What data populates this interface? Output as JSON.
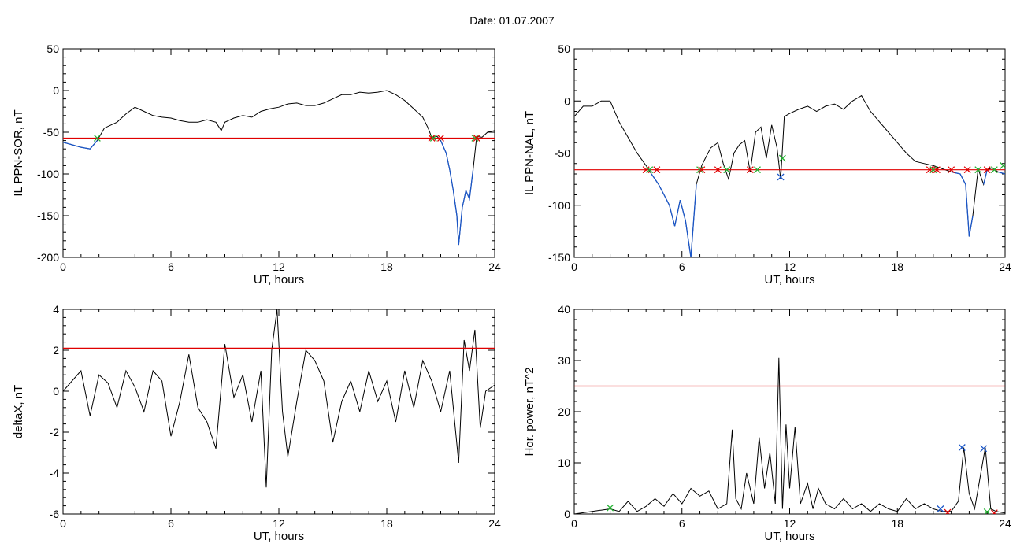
{
  "page": {
    "title": "Date:  01.07.2007"
  },
  "colors": {
    "trace": "#000000",
    "threshold": "#e00000",
    "below": "#1a56c8",
    "marker_red": "#e00000",
    "marker_green": "#22b030",
    "marker_blue": "#1a56c8"
  },
  "chart_data": [
    {
      "type": "line",
      "title": "",
      "xlabel": "UT, hours",
      "ylabel": "IL PPN-SOR, nT",
      "xlim": [
        0,
        24
      ],
      "ylim": [
        -200,
        50
      ],
      "xticks": [
        "0",
        "6",
        "12",
        "18",
        "24"
      ],
      "yticks": [
        "50",
        "0",
        "-50",
        "-100",
        "-150",
        "-200"
      ],
      "grid": false,
      "threshold": -57,
      "series": [
        {
          "x": [
            0,
            0.5,
            1.0,
            1.5,
            1.9,
            2.3,
            3.0,
            3.5,
            4.0,
            4.5,
            5.0,
            5.5,
            6.0,
            6.5,
            7.0,
            7.5,
            8.0,
            8.5,
            8.8,
            9.0,
            9.5,
            10.0,
            10.5,
            11.0,
            11.5,
            12.0,
            12.5,
            13.0,
            13.5,
            14.0,
            14.5,
            15.0,
            15.5,
            16.0,
            16.5,
            17.0,
            17.5,
            18.0,
            18.5,
            19.0,
            19.5,
            20.0,
            20.3,
            20.5,
            20.8,
            21.0,
            21.3,
            21.5,
            21.7,
            21.9,
            22.0,
            22.2,
            22.4,
            22.6,
            22.8,
            23.0,
            23.3,
            23.6,
            24.0
          ],
          "y": [
            -62,
            -65,
            -68,
            -70,
            -60,
            -45,
            -38,
            -28,
            -20,
            -25,
            -30,
            -32,
            -33,
            -36,
            -38,
            -38,
            -35,
            -38,
            -48,
            -38,
            -33,
            -30,
            -32,
            -25,
            -22,
            -20,
            -16,
            -15,
            -18,
            -18,
            -15,
            -10,
            -5,
            -5,
            -2,
            -3,
            -2,
            0,
            -5,
            -12,
            -22,
            -32,
            -45,
            -56,
            -55,
            -60,
            -75,
            -95,
            -120,
            -150,
            -185,
            -140,
            -120,
            -130,
            -95,
            -55,
            -56,
            -50,
            -48
          ]
        }
      ],
      "markers": [
        {
          "x": 1.9,
          "y": -57,
          "color": "green"
        },
        {
          "x": 20.5,
          "y": -57,
          "color": "red"
        },
        {
          "x": 20.6,
          "y": -57,
          "color": "green"
        },
        {
          "x": 21.0,
          "y": -57,
          "color": "red"
        },
        {
          "x": 22.9,
          "y": -57,
          "color": "green"
        },
        {
          "x": 23.0,
          "y": -57,
          "color": "red"
        }
      ]
    },
    {
      "type": "line",
      "title": "",
      "xlabel": "UT, hours",
      "ylabel": "IL PPN-NAL, nT",
      "xlim": [
        0,
        24
      ],
      "ylim": [
        -150,
        50
      ],
      "xticks": [
        "0",
        "6",
        "12",
        "18",
        "24"
      ],
      "yticks": [
        "50",
        "0",
        "-50",
        "-100",
        "-150"
      ],
      "grid": false,
      "threshold": -66,
      "series": [
        {
          "x": [
            0,
            0.5,
            1.0,
            1.5,
            2.0,
            2.5,
            3.0,
            3.5,
            4.0,
            4.3,
            4.7,
            5.0,
            5.3,
            5.6,
            5.9,
            6.2,
            6.5,
            6.8,
            7.1,
            7.3,
            7.6,
            8.0,
            8.3,
            8.6,
            8.9,
            9.2,
            9.5,
            9.8,
            10.1,
            10.4,
            10.7,
            11.0,
            11.3,
            11.5,
            11.7,
            12.0,
            12.5,
            13.0,
            13.5,
            14.0,
            14.5,
            15.0,
            15.5,
            16.0,
            16.5,
            17.0,
            17.5,
            18.0,
            18.5,
            19.0,
            19.5,
            20.0,
            20.5,
            21.0,
            21.5,
            21.8,
            22.0,
            22.2,
            22.5,
            22.8,
            23.0,
            23.3,
            23.6,
            24.0
          ],
          "y": [
            -15,
            -5,
            -5,
            0,
            0,
            -20,
            -35,
            -50,
            -62,
            -70,
            -80,
            -90,
            -100,
            -120,
            -95,
            -115,
            -150,
            -80,
            -62,
            -55,
            -45,
            -40,
            -60,
            -75,
            -50,
            -42,
            -38,
            -68,
            -30,
            -25,
            -55,
            -23,
            -45,
            -75,
            -15,
            -12,
            -8,
            -5,
            -10,
            -5,
            -3,
            -8,
            0,
            5,
            -10,
            -20,
            -30,
            -40,
            -50,
            -58,
            -60,
            -62,
            -65,
            -68,
            -70,
            -80,
            -130,
            -110,
            -65,
            -80,
            -66,
            -64,
            -68,
            -70
          ]
        }
      ],
      "markers": [
        {
          "x": 4.0,
          "y": -66,
          "color": "red"
        },
        {
          "x": 4.2,
          "y": -66,
          "color": "green"
        },
        {
          "x": 4.6,
          "y": -66,
          "color": "red"
        },
        {
          "x": 7.0,
          "y": -66,
          "color": "green"
        },
        {
          "x": 7.1,
          "y": -66,
          "color": "red"
        },
        {
          "x": 8.0,
          "y": -66,
          "color": "red"
        },
        {
          "x": 8.5,
          "y": -66,
          "color": "green"
        },
        {
          "x": 9.8,
          "y": -66,
          "color": "red"
        },
        {
          "x": 10.2,
          "y": -66,
          "color": "green"
        },
        {
          "x": 11.5,
          "y": -73,
          "color": "blue"
        },
        {
          "x": 11.6,
          "y": -55,
          "color": "green"
        },
        {
          "x": 19.8,
          "y": -66,
          "color": "red"
        },
        {
          "x": 20.0,
          "y": -66,
          "color": "green"
        },
        {
          "x": 20.2,
          "y": -66,
          "color": "red"
        },
        {
          "x": 21.0,
          "y": -66,
          "color": "red"
        },
        {
          "x": 21.9,
          "y": -66,
          "color": "red"
        },
        {
          "x": 22.5,
          "y": -66,
          "color": "green"
        },
        {
          "x": 23.0,
          "y": -66,
          "color": "red"
        },
        {
          "x": 23.4,
          "y": -66,
          "color": "green"
        },
        {
          "x": 23.9,
          "y": -62,
          "color": "green"
        }
      ]
    },
    {
      "type": "line",
      "title": "",
      "xlabel": "UT, hours",
      "ylabel": "deltaX, nT",
      "xlim": [
        0,
        24
      ],
      "ylim": [
        -6,
        4
      ],
      "xticks": [
        "0",
        "6",
        "12",
        "18",
        "24"
      ],
      "yticks": [
        "4",
        "2",
        "0",
        "-2",
        "-4",
        "-6"
      ],
      "grid": false,
      "threshold": 2.1,
      "series": [
        {
          "x": [
            0,
            0.5,
            1.0,
            1.5,
            2.0,
            2.5,
            3.0,
            3.5,
            4.0,
            4.5,
            5.0,
            5.5,
            6.0,
            6.5,
            7.0,
            7.5,
            8.0,
            8.5,
            9.0,
            9.5,
            10.0,
            10.5,
            11.0,
            11.3,
            11.6,
            11.9,
            12.2,
            12.5,
            13.0,
            13.5,
            14.0,
            14.5,
            15.0,
            15.5,
            16.0,
            16.5,
            17.0,
            17.5,
            18.0,
            18.5,
            19.0,
            19.5,
            20.0,
            20.5,
            21.0,
            21.5,
            22.0,
            22.3,
            22.6,
            22.9,
            23.2,
            23.5,
            24.0
          ],
          "y": [
            0,
            0.5,
            1.0,
            -1.2,
            0.8,
            0.4,
            -0.8,
            1.0,
            0.2,
            -1.0,
            1.0,
            0.5,
            -2.2,
            -0.5,
            1.8,
            -0.8,
            -1.5,
            -2.8,
            2.3,
            -0.3,
            0.8,
            -1.5,
            1.0,
            -4.7,
            2.0,
            4.0,
            -1.0,
            -3.2,
            -0.5,
            2.0,
            1.5,
            0.5,
            -2.5,
            -0.5,
            0.5,
            -1.0,
            1.0,
            -0.5,
            0.5,
            -1.5,
            1.0,
            -0.8,
            1.5,
            0.5,
            -1.0,
            1.0,
            -3.5,
            2.5,
            1.0,
            3.0,
            -1.8,
            0.0,
            0.3
          ]
        }
      ],
      "markers": []
    },
    {
      "type": "line",
      "title": "",
      "xlabel": "UT, hours",
      "ylabel": "Hor. power, nT^2",
      "xlim": [
        0,
        24
      ],
      "ylim": [
        0,
        40
      ],
      "xticks": [
        "0",
        "6",
        "12",
        "18",
        "24"
      ],
      "yticks": [
        "40",
        "30",
        "20",
        "10",
        "0"
      ],
      "grid": false,
      "threshold": 25,
      "series": [
        {
          "x": [
            0,
            1.0,
            2.0,
            2.5,
            3.0,
            3.5,
            4.0,
            4.5,
            5.0,
            5.5,
            6.0,
            6.5,
            7.0,
            7.5,
            8.0,
            8.5,
            8.8,
            9.0,
            9.3,
            9.6,
            10.0,
            10.3,
            10.6,
            10.9,
            11.2,
            11.4,
            11.6,
            11.8,
            12.0,
            12.3,
            12.6,
            13.0,
            13.3,
            13.6,
            14.0,
            14.5,
            15.0,
            15.5,
            16.0,
            16.5,
            17.0,
            17.5,
            18.0,
            18.5,
            19.0,
            19.5,
            20.0,
            20.5,
            21.0,
            21.4,
            21.7,
            22.0,
            22.3,
            22.6,
            22.9,
            23.2,
            23.5,
            24.0
          ],
          "y": [
            0,
            0.5,
            1.0,
            0.5,
            2.5,
            0.5,
            1.5,
            3.0,
            1.5,
            4.0,
            2.0,
            5.0,
            3.5,
            4.5,
            1.0,
            2.0,
            16.5,
            3.0,
            1.0,
            8.0,
            2.0,
            15.0,
            5.0,
            12.0,
            2.0,
            30.5,
            1.0,
            17.5,
            5.0,
            17.0,
            2.0,
            6.0,
            1.0,
            5.0,
            2.0,
            1.0,
            3.0,
            1.0,
            2.0,
            0.5,
            2.0,
            1.0,
            0.5,
            3.0,
            1.0,
            2.0,
            1.0,
            0.5,
            0.5,
            2.5,
            13.0,
            4.0,
            1.0,
            7.0,
            13.0,
            1.0,
            0.5,
            0.2
          ]
        }
      ],
      "markers": [
        {
          "x": 2.0,
          "y": 1.2,
          "color": "green"
        },
        {
          "x": 20.4,
          "y": 1.0,
          "color": "blue"
        },
        {
          "x": 20.8,
          "y": 0.3,
          "color": "red"
        },
        {
          "x": 21.6,
          "y": 13.0,
          "color": "blue"
        },
        {
          "x": 22.8,
          "y": 12.8,
          "color": "blue"
        },
        {
          "x": 23.0,
          "y": 0.4,
          "color": "green"
        },
        {
          "x": 23.4,
          "y": 0.2,
          "color": "red"
        }
      ]
    }
  ]
}
